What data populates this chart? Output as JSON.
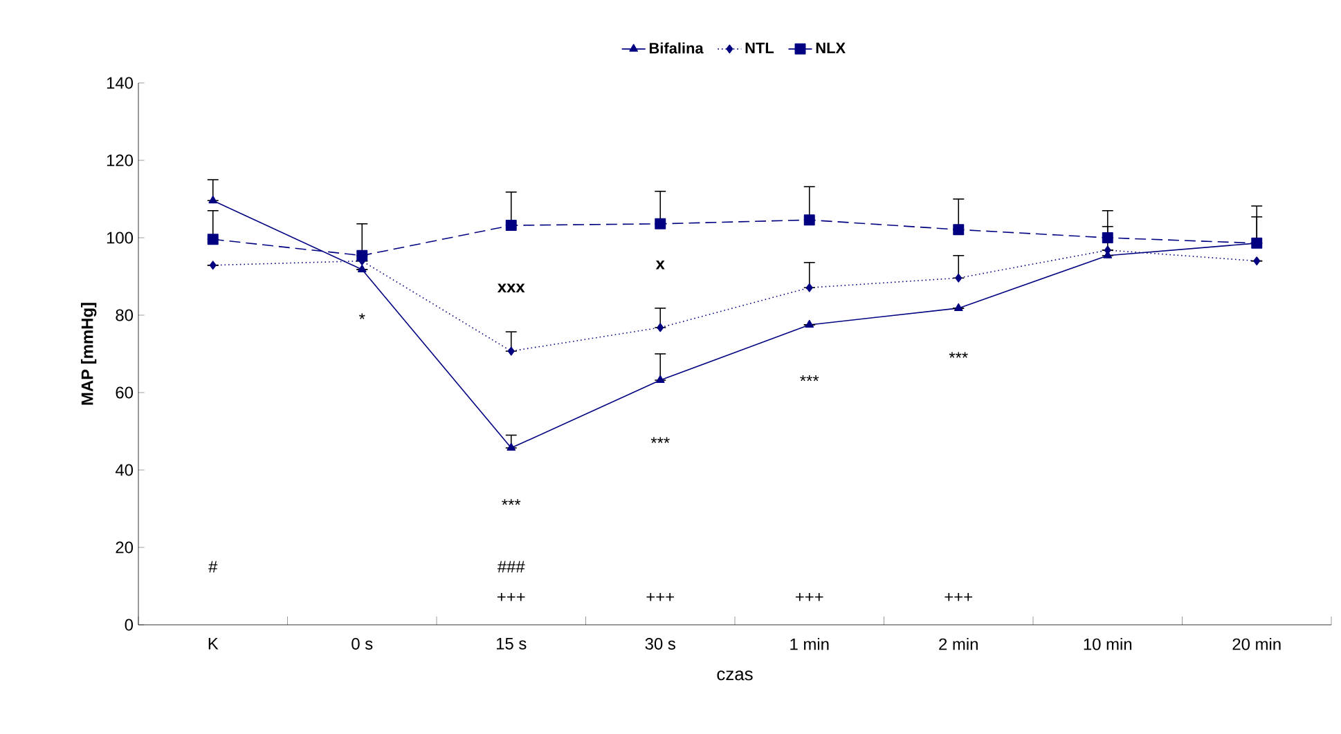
{
  "chart_data": {
    "type": "line",
    "xlabel": "czas",
    "ylabel": "MAP [mmHg]",
    "categories": [
      "K",
      "0 s",
      "15 s",
      "30 s",
      "1 min",
      "2 min",
      "10 min",
      "20 min"
    ],
    "ylim": [
      0,
      140
    ],
    "yticks": [
      0,
      20,
      40,
      60,
      80,
      100,
      120,
      140
    ],
    "grid": false,
    "legend": "top",
    "series": [
      {
        "name": "Bifalina",
        "color": "#000080",
        "marker": "triangle",
        "line_style": "solid",
        "values": [
          109.6,
          91.8,
          45.7,
          63.2,
          77.5,
          81.8,
          95.4,
          98.6
        ],
        "errors": [
          [
            109.6,
            115
          ],
          null,
          [
            45.7,
            49
          ],
          [
            63.2,
            70
          ],
          null,
          null,
          [
            95.4,
            102.9
          ],
          [
            98.6,
            105.4
          ]
        ]
      },
      {
        "name": "NTL",
        "color": "#000080",
        "marker": "diamond",
        "line_style": "dotted",
        "values": [
          92.9,
          94,
          70.7,
          76.8,
          87.1,
          89.6,
          96.8,
          94
        ],
        "errors": [
          null,
          null,
          [
            70.7,
            75.7
          ],
          [
            76.8,
            81.8
          ],
          [
            87.1,
            93.6
          ],
          [
            89.6,
            95.4
          ],
          null,
          null
        ]
      },
      {
        "name": "NLX",
        "color": "#000080",
        "marker": "square",
        "line_style": "dashed",
        "values": [
          99.6,
          95.4,
          103.2,
          103.6,
          104.6,
          102.1,
          100,
          98.6
        ],
        "errors": [
          [
            99.6,
            107
          ],
          [
            95.4,
            103.6
          ],
          [
            103.2,
            111.8
          ],
          [
            103.6,
            112
          ],
          [
            104.6,
            113.2
          ],
          [
            102.1,
            110
          ],
          [
            100,
            107
          ],
          [
            98.6,
            108.2
          ]
        ]
      }
    ],
    "annotations": [
      "#",
      "*",
      "xxx",
      "***",
      "###",
      "+++",
      "x",
      "***",
      "+++",
      "***",
      "+++",
      "***",
      "+++"
    ]
  }
}
